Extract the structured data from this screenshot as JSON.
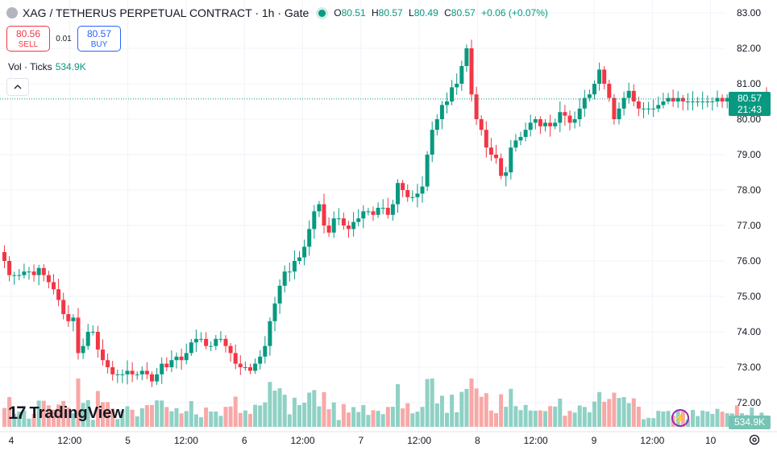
{
  "header": {
    "symbol_title": "XAG / TETHERUS PERPETUAL CONTRACT · 1h · Gate",
    "ohlc": {
      "o_label": "O",
      "o": "80.51",
      "h_label": "H",
      "h": "80.57",
      "l_label": "L",
      "l": "80.49",
      "c_label": "C",
      "c": "80.57",
      "change": "+0.06 (+0.07%)"
    }
  },
  "trade": {
    "sell_price": "80.56",
    "sell_label": "SELL",
    "spread": "0.01",
    "buy_price": "80.57",
    "buy_label": "BUY"
  },
  "volume_legend": {
    "label": "Vol · Ticks",
    "value": "534.9K"
  },
  "price_tag": {
    "price": "80.57",
    "countdown": "21:43"
  },
  "volume_tag": "534.9K",
  "logo_text": "TradingView",
  "colors": {
    "up": "#089981",
    "down": "#f23645",
    "up_vol": "#8fd1c5",
    "down_vol": "#f7a9a7",
    "brand": "#2962ff"
  },
  "icons": {
    "symbol": "globe-icon",
    "collapse": "chevron-up-icon",
    "flash": "lightning-icon",
    "settings": "gear-icon"
  },
  "chart_data": {
    "type": "candlestick",
    "current_price": 80.57,
    "y_axis_ticks": [
      "83.00",
      "82.00",
      "81.00",
      "80.00",
      "79.00",
      "78.00",
      "77.00",
      "76.00",
      "75.00",
      "74.00",
      "73.00",
      "72.00"
    ],
    "x_axis_ticks": [
      "4",
      "12:00",
      "5",
      "12:00",
      "6",
      "12:00",
      "7",
      "12:00",
      "8",
      "12:00",
      "9",
      "12:00",
      "10"
    ],
    "ylim": [
      71.6,
      83.3
    ],
    "close_series": [
      76.0,
      75.6,
      75.6,
      75.6,
      75.7,
      75.7,
      75.6,
      75.8,
      75.6,
      75.4,
      75.2,
      74.9,
      74.5,
      74.3,
      74.4,
      73.4,
      73.6,
      74.0,
      74.0,
      73.5,
      73.2,
      73.0,
      72.8,
      72.8,
      72.8,
      72.9,
      72.8,
      72.8,
      72.9,
      72.8,
      72.6,
      72.8,
      73.1,
      73.0,
      73.2,
      73.3,
      73.2,
      73.4,
      73.7,
      73.8,
      73.8,
      73.6,
      73.6,
      73.8,
      73.8,
      73.6,
      73.4,
      73.1,
      73.0,
      73.0,
      72.9,
      73.1,
      73.3,
      73.6,
      74.3,
      74.8,
      75.3,
      75.7,
      75.7,
      76.0,
      76.1,
      76.4,
      76.9,
      77.4,
      77.6,
      77.0,
      76.8,
      77.2,
      77.2,
      77.0,
      76.9,
      77.1,
      77.2,
      77.4,
      77.4,
      77.3,
      77.5,
      77.5,
      77.3,
      77.6,
      78.2,
      78.0,
      77.8,
      77.8,
      77.9,
      78.1,
      79.0,
      79.7,
      80.0,
      80.4,
      80.5,
      80.9,
      81.0,
      81.5,
      82.0,
      80.7,
      80.0,
      79.7,
      79.2,
      79.0,
      78.9,
      78.4,
      78.5,
      79.2,
      79.4,
      79.5,
      79.7,
      79.9,
      80.0,
      79.8,
      79.9,
      79.8,
      79.9,
      80.2,
      80.1,
      79.9,
      80.0,
      80.3,
      80.6,
      80.7,
      81.0,
      81.4,
      81.0,
      80.6,
      80.0,
      80.3,
      80.6,
      80.8,
      80.5,
      80.3,
      80.3,
      80.3,
      80.3,
      80.4,
      80.5,
      80.6,
      80.5,
      80.6,
      80.5,
      80.5,
      80.5,
      80.5,
      80.5,
      80.5,
      80.5,
      80.6,
      80.5,
      80.6,
      80.6,
      80.5,
      80.5,
      80.4,
      80.5,
      80.5,
      80.6,
      80.57
    ]
  }
}
